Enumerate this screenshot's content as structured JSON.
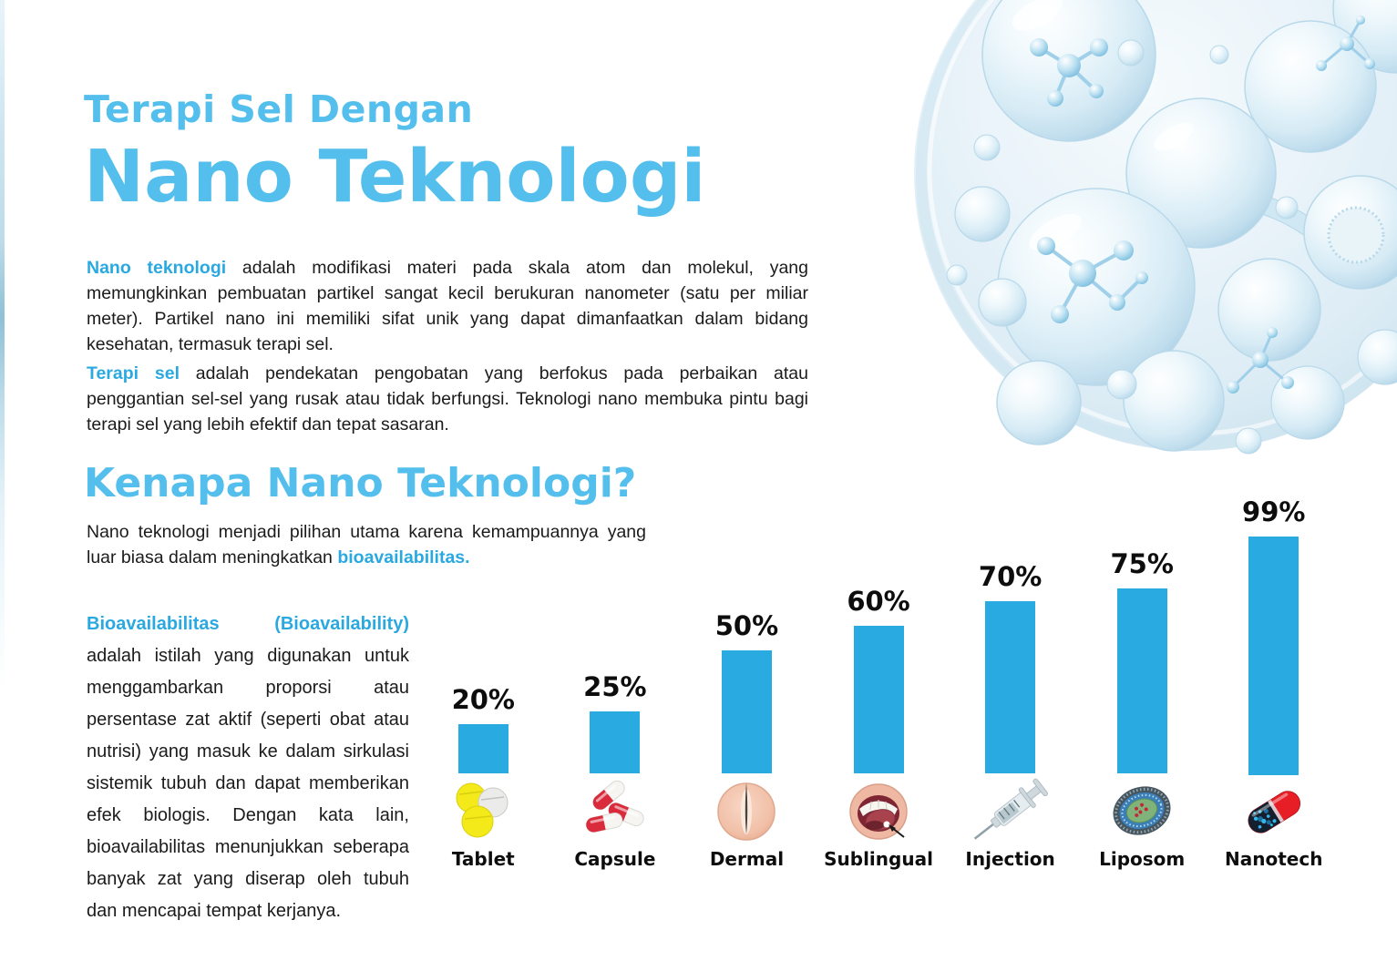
{
  "header": {
    "title_line1": "Terapi Sel Dengan",
    "title_line2": "Nano Teknologi"
  },
  "intro": {
    "p1_lead": "Nano teknologi",
    "p1_rest": " adalah modifikasi materi pada skala atom dan molekul, yang memungkinkan pembuatan partikel sangat kecil berukuran nanometer (satu per miliar meter). Partikel nano ini memiliki sifat unik yang dapat dimanfaatkan dalam bidang kesehatan, termasuk terapi sel.",
    "p2_lead": "Terapi sel",
    "p2_rest": " adalah pendekatan pengobatan yang berfokus pada perbaikan atau penggantian sel-sel yang rusak atau tidak berfungsi. Teknologi nano membuka pintu bagi terapi sel yang lebih efektif dan tepat sasaran."
  },
  "why": {
    "heading": "Kenapa Nano Teknologi?",
    "body_start": "Nano teknologi menjadi pilihan utama karena kemampuannya yang luar biasa dalam meningkatkan ",
    "body_highlight": "bioavailabilitas."
  },
  "bio": {
    "lead": "Bioavailabilitas (Bioavailability)",
    "rest": " adalah istilah yang digunakan untuk menggambarkan proporsi atau persentase zat aktif (seperti obat atau nutrisi) yang masuk ke dalam sirkulasi sistemik tubuh dan dapat memberikan efek biologis. Dengan kata lain, bioavailabilitas menunjukkan seberapa banyak zat yang diserap oleh tubuh dan mencapai tempat kerjanya."
  },
  "chart_data": {
    "type": "bar",
    "title": "",
    "categories": [
      "Tablet",
      "Capsule",
      "Dermal",
      "Sublingual",
      "Injection",
      "Liposom",
      "Nanotech"
    ],
    "values": [
      20,
      25,
      50,
      60,
      70,
      75,
      99
    ],
    "value_labels": [
      "20%",
      "25%",
      "50%",
      "60%",
      "70%",
      "75%",
      "99%"
    ],
    "ylim": [
      0,
      100
    ],
    "grid": false,
    "legend": "none",
    "bar_color": "#29abe2",
    "icons": [
      "tablet-pills",
      "capsules",
      "dermal-skin",
      "sublingual-mouth",
      "injection-syringe",
      "liposome",
      "nanotech-capsule"
    ]
  },
  "colors": {
    "heading_blue": "#54bfec",
    "accent_blue": "#2aa9e1",
    "bar_blue": "#29abe2",
    "text": "#1b1b1b",
    "background": "#ffffff"
  }
}
